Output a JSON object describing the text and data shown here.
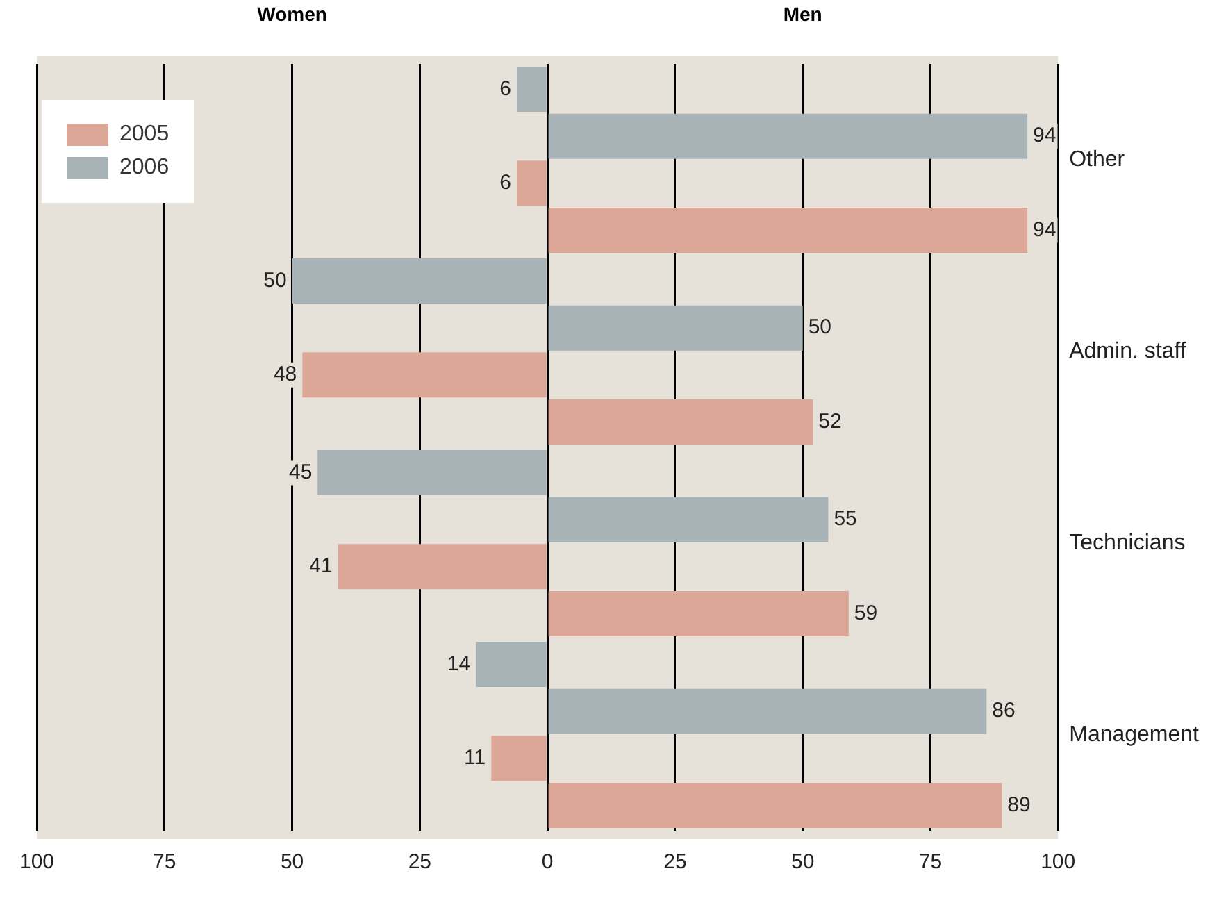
{
  "chart_data": {
    "type": "bar",
    "orientation": "horizontal",
    "annotations": [
      "Women",
      "Men"
    ],
    "categories": [
      "Other",
      "Admin. staff",
      "Technicians",
      "Management"
    ],
    "series": [
      {
        "name": "2006",
        "color": "#a7b3b6",
        "base": [
          -6,
          -50,
          -45,
          -14
        ],
        "values": [
          6,
          50,
          45,
          14
        ],
        "value_labels": [
          "6",
          "50",
          "45",
          "14"
        ]
      },
      {
        "color": "#a7b3b6",
        "values": [
          94,
          50,
          55,
          86
        ],
        "value_labels": [
          "94",
          "50",
          "55",
          "86"
        ]
      },
      {
        "name": "2005",
        "color": "#dca796",
        "base": [
          -6,
          -48,
          -41,
          -11
        ],
        "values": [
          6,
          48,
          41,
          11
        ],
        "value_labels": [
          "6",
          "48",
          "41",
          "11"
        ]
      },
      {
        "color": "#dca796",
        "values": [
          94,
          52,
          59,
          89
        ],
        "value_labels": [
          "94",
          "52",
          "59",
          "89"
        ]
      }
    ],
    "xlim": [
      -100,
      100
    ],
    "xticks": [
      {
        "value": -100,
        "label": "100"
      },
      {
        "value": -75,
        "label": "75"
      },
      {
        "value": -50,
        "label": "50"
      },
      {
        "value": -25,
        "label": "25"
      },
      0,
      25,
      50,
      75,
      100
    ],
    "grid": "x",
    "legend": "top left"
  }
}
